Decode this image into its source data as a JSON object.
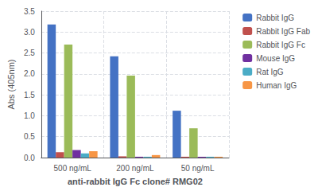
{
  "chart_data": {
    "type": "bar",
    "categories": [
      "500 ng/mL",
      "200 ng/mL",
      "50 ng/mL"
    ],
    "series": [
      {
        "name": "Rabbit IgG",
        "color": "#4472C4",
        "values": [
          3.18,
          2.42,
          1.12
        ]
      },
      {
        "name": "Rabbit IgG Fab",
        "color": "#C0504D",
        "values": [
          0.13,
          0.03,
          0.02
        ]
      },
      {
        "name": "Rabbit IgG Fc",
        "color": "#9BBB59",
        "values": [
          2.7,
          1.96,
          0.7
        ]
      },
      {
        "name": "Mouse IgG",
        "color": "#7030A0",
        "values": [
          0.18,
          0.02,
          0.02
        ]
      },
      {
        "name": "Rat IgG",
        "color": "#4BACC6",
        "values": [
          0.1,
          0.02,
          0.02
        ]
      },
      {
        "name": "Human IgG",
        "color": "#F79646",
        "values": [
          0.15,
          0.06,
          0.02
        ]
      }
    ],
    "ylabel": "Abs (405nm)",
    "xlabel": "anti-rabbit IgG Fc clone# RMG02",
    "ylim": [
      0,
      3.5
    ],
    "yticks": [
      {
        "value": 0,
        "label": "0.0"
      },
      0.5,
      {
        "value": 1.0,
        "label": "1.0"
      },
      1.5,
      {
        "value": 2.0,
        "label": "2.0"
      },
      2.5,
      {
        "value": 3.0,
        "label": "3.0"
      },
      3.5
    ],
    "grid": true,
    "legend": "right"
  }
}
